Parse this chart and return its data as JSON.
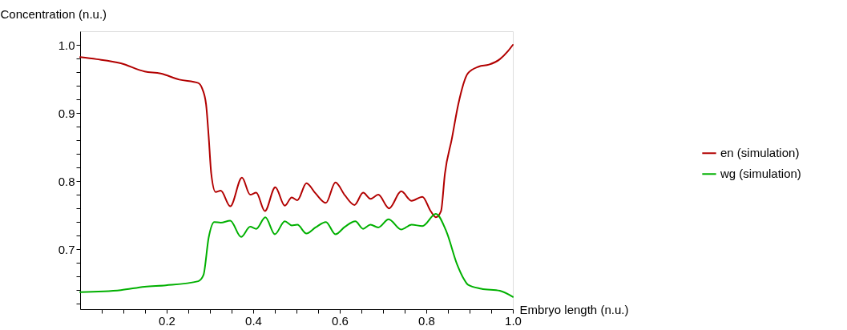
{
  "chart_data": {
    "type": "line",
    "xlabel": "Embryo length (n.u.)",
    "ylabel": "Concentration (n.u.)",
    "xlim": [
      0,
      1.0
    ],
    "ylim": [
      0.612,
      1.02
    ],
    "xticks": [
      {
        "value": 0.05,
        "label": null
      },
      {
        "value": 0.1,
        "label": null
      },
      {
        "value": 0.15,
        "label": null
      },
      0.2,
      {
        "value": 0.25,
        "label": null
      },
      {
        "value": 0.3,
        "label": null
      },
      {
        "value": 0.35,
        "label": null
      },
      0.4,
      {
        "value": 0.45,
        "label": null
      },
      {
        "value": 0.5,
        "label": null
      },
      {
        "value": 0.55,
        "label": null
      },
      0.6,
      {
        "value": 0.65,
        "label": null
      },
      {
        "value": 0.7,
        "label": null
      },
      {
        "value": 0.75,
        "label": null
      },
      0.8,
      {
        "value": 0.85,
        "label": null
      },
      {
        "value": 0.9,
        "label": null
      },
      {
        "value": 0.95,
        "label": null
      },
      {
        "value": 1.0,
        "label": "1.0"
      }
    ],
    "yticks": [
      {
        "value": 0.62,
        "label": null
      },
      {
        "value": 0.64,
        "label": null
      },
      {
        "value": 0.66,
        "label": null
      },
      {
        "value": 0.68,
        "label": null
      },
      0.7,
      {
        "value": 0.72,
        "label": null
      },
      {
        "value": 0.74,
        "label": null
      },
      {
        "value": 0.76,
        "label": null
      },
      {
        "value": 0.78,
        "label": null
      },
      0.8,
      {
        "value": 0.82,
        "label": null
      },
      {
        "value": 0.84,
        "label": null
      },
      {
        "value": 0.86,
        "label": null
      },
      {
        "value": 0.88,
        "label": null
      },
      0.9,
      {
        "value": 0.92,
        "label": null
      },
      {
        "value": 0.94,
        "label": null
      },
      {
        "value": 0.96,
        "label": null
      },
      {
        "value": 0.98,
        "label": null
      },
      {
        "value": 1.0,
        "label": "1.0"
      }
    ],
    "grid": false,
    "legend": "right",
    "line_style": "solid",
    "marker": "none",
    "series": [
      {
        "name": "en (simulation)",
        "color": "#b20000",
        "x": [
          0,
          0.038,
          0.094,
          0.149,
          0.186,
          0.229,
          0.273,
          0.282,
          0.291,
          0.297,
          0.303,
          0.313,
          0.325,
          0.347,
          0.374,
          0.393,
          0.407,
          0.427,
          0.451,
          0.473,
          0.489,
          0.502,
          0.523,
          0.544,
          0.568,
          0.59,
          0.612,
          0.634,
          0.654,
          0.671,
          0.689,
          0.714,
          0.742,
          0.766,
          0.791,
          0.81,
          0.822,
          0.834,
          0.843,
          0.859,
          0.874,
          0.896,
          0.921,
          0.945,
          0.97,
          0.989,
          1.0
        ],
        "values": [
          0.982,
          0.979,
          0.973,
          0.961,
          0.958,
          0.949,
          0.944,
          0.936,
          0.913,
          0.866,
          0.811,
          0.784,
          0.786,
          0.763,
          0.805,
          0.78,
          0.783,
          0.756,
          0.791,
          0.764,
          0.776,
          0.772,
          0.797,
          0.782,
          0.768,
          0.798,
          0.779,
          0.765,
          0.783,
          0.774,
          0.78,
          0.76,
          0.785,
          0.771,
          0.777,
          0.756,
          0.747,
          0.756,
          0.811,
          0.862,
          0.913,
          0.958,
          0.968,
          0.971,
          0.979,
          0.991,
          1.0
        ]
      },
      {
        "name": "wg (simulation)",
        "color": "#00b000",
        "x": [
          0,
          0.094,
          0.149,
          0.198,
          0.273,
          0.285,
          0.297,
          0.31,
          0.325,
          0.347,
          0.372,
          0.393,
          0.407,
          0.428,
          0.45,
          0.473,
          0.489,
          0.502,
          0.523,
          0.544,
          0.568,
          0.59,
          0.612,
          0.636,
          0.654,
          0.671,
          0.689,
          0.713,
          0.742,
          0.766,
          0.791,
          0.822,
          0.847,
          0.871,
          0.887,
          0.896,
          0.927,
          0.97,
          1.0
        ],
        "values": [
          0.637,
          0.64,
          0.645,
          0.647,
          0.653,
          0.662,
          0.717,
          0.74,
          0.739,
          0.742,
          0.718,
          0.733,
          0.73,
          0.747,
          0.722,
          0.741,
          0.735,
          0.736,
          0.723,
          0.732,
          0.74,
          0.722,
          0.733,
          0.741,
          0.73,
          0.736,
          0.732,
          0.744,
          0.729,
          0.736,
          0.734,
          0.752,
          0.725,
          0.678,
          0.656,
          0.648,
          0.642,
          0.639,
          0.63
        ]
      }
    ]
  }
}
